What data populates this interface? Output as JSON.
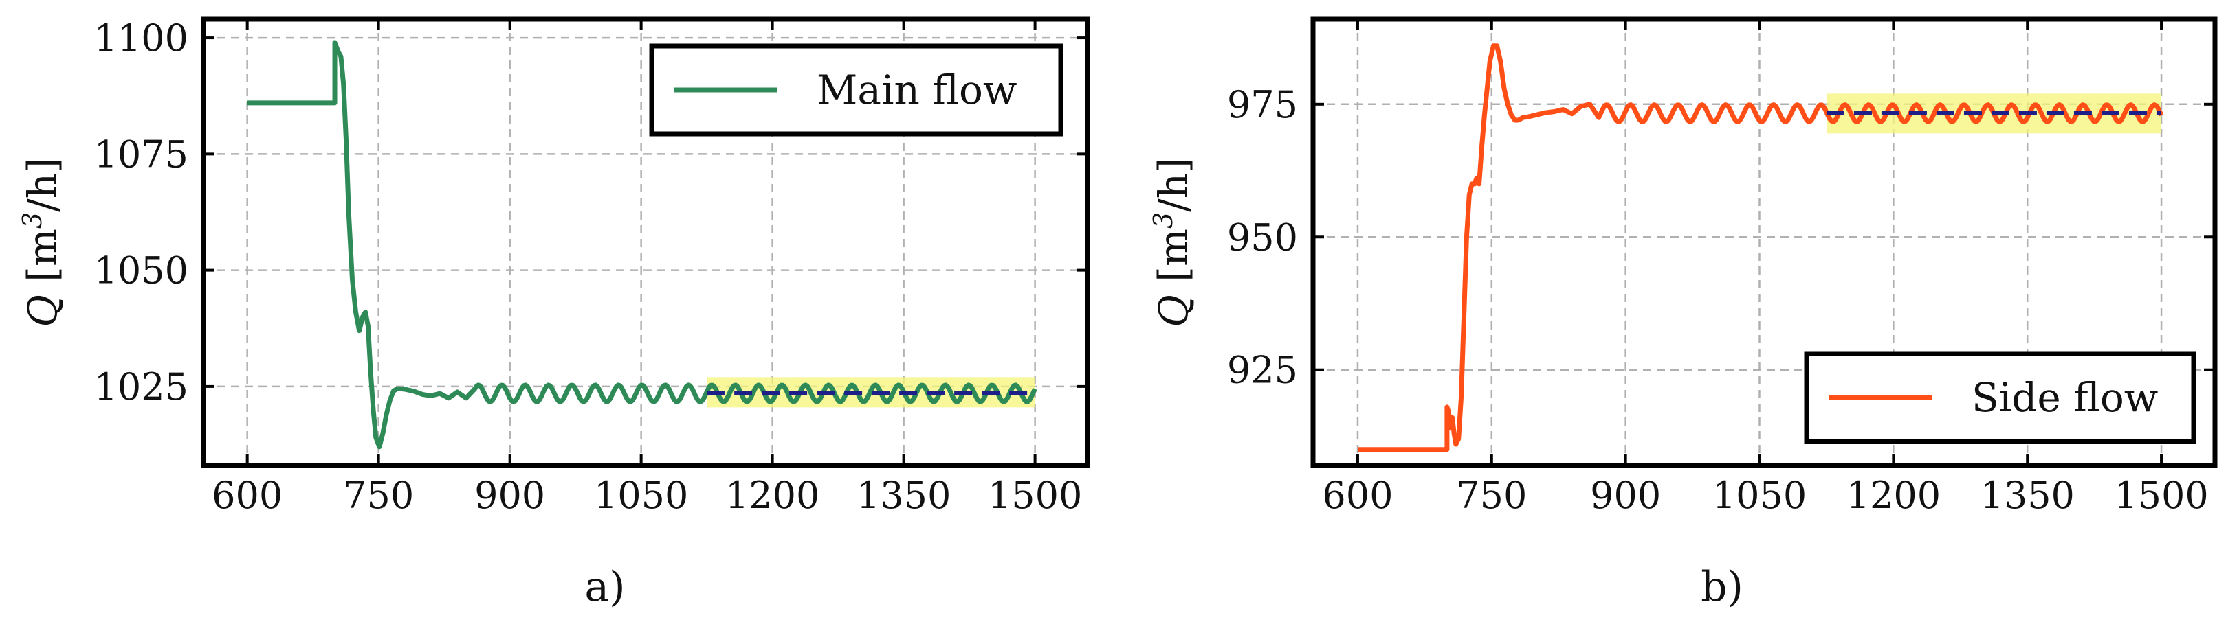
{
  "chart_data": [
    {
      "type": "line",
      "panel_label": "a)",
      "ylabel_main": "Q",
      "ylabel_unit_open": "[m",
      "ylabel_unit_exp": "3",
      "ylabel_unit_close": "/h]",
      "xlabel": "",
      "xlim": [
        550,
        1560
      ],
      "ylim": [
        1008,
        1104
      ],
      "xticks": [
        600,
        750,
        900,
        1050,
        1200,
        1350,
        1500
      ],
      "yticks": [
        1025,
        1050,
        1075,
        1100
      ],
      "grid": true,
      "legend_position": "top-right",
      "colors": {
        "line": "#2e8b57",
        "band": "#f5f57a",
        "mean": "#1f1f8a"
      },
      "series": [
        {
          "name": "Main flow",
          "x": [
            600,
            700,
            700,
            702,
            704,
            707,
            710,
            713,
            716,
            720,
            724,
            728,
            732,
            735,
            738,
            741,
            744,
            747,
            751,
            755,
            759,
            763,
            767,
            771,
            775,
            780,
            790,
            800,
            810,
            820,
            830,
            840,
            850,
            860
          ],
          "y": [
            1086,
            1086,
            1099,
            1098,
            1097,
            1096,
            1090,
            1078,
            1062,
            1048,
            1041,
            1037,
            1040,
            1041,
            1038,
            1028,
            1020,
            1014,
            1012,
            1015,
            1019,
            1022,
            1024,
            1024.5,
            1024.5,
            1024.4,
            1024,
            1023.3,
            1023,
            1023.5,
            1022.5,
            1023.8,
            1022.5,
            1024.5
          ]
        }
      ],
      "oscillation": {
        "x_start": 860,
        "x_end": 1500,
        "center": 1023.5,
        "amplitude": 1.8,
        "period": 26.67
      },
      "band": {
        "x_start": 1125,
        "x_end": 1500,
        "y_low": 1020.5,
        "y_high": 1027
      },
      "mean_line": {
        "x_start": 1125,
        "x_end": 1500,
        "y": 1023.5
      }
    },
    {
      "type": "line",
      "panel_label": "b)",
      "ylabel_main": "Q",
      "ylabel_unit_open": "[m",
      "ylabel_unit_exp": "3",
      "ylabel_unit_close": "/h]",
      "xlabel": "",
      "xlim": [
        550,
        1560
      ],
      "ylim": [
        907,
        991
      ],
      "xticks": [
        600,
        750,
        900,
        1050,
        1200,
        1350,
        1500
      ],
      "yticks": [
        925,
        950,
        975
      ],
      "grid": true,
      "legend_position": "bottom-right",
      "colors": {
        "line": "#ff4f17",
        "band": "#f5f57a",
        "mean": "#1f1f8a"
      },
      "series": [
        {
          "name": "Side flow",
          "x": [
            600,
            700,
            700,
            702,
            704,
            706,
            708,
            710,
            713,
            716,
            719,
            722,
            725,
            728,
            731,
            733,
            736,
            739,
            742,
            745,
            748,
            752,
            756,
            760,
            764,
            768,
            772,
            776,
            780,
            785,
            790,
            800,
            810,
            820,
            830,
            840,
            850,
            860,
            870
          ],
          "y": [
            910,
            910,
            918,
            917,
            914,
            916,
            913,
            911,
            912,
            920,
            935,
            950,
            958,
            960,
            960,
            961,
            960,
            967,
            973,
            978,
            983,
            986,
            986,
            983,
            978,
            975,
            973,
            972,
            972,
            972.5,
            972.6,
            973,
            973.4,
            973.6,
            974,
            973.2,
            974.6,
            975,
            972.5
          ]
        }
      ],
      "oscillation": {
        "x_start": 870,
        "x_end": 1500,
        "center": 973.3,
        "amplitude": 1.6,
        "period": 26.67
      },
      "band": {
        "x_start": 1125,
        "x_end": 1500,
        "y_low": 969.5,
        "y_high": 977
      },
      "mean_line": {
        "x_start": 1125,
        "x_end": 1500,
        "y": 973.3
      }
    }
  ]
}
